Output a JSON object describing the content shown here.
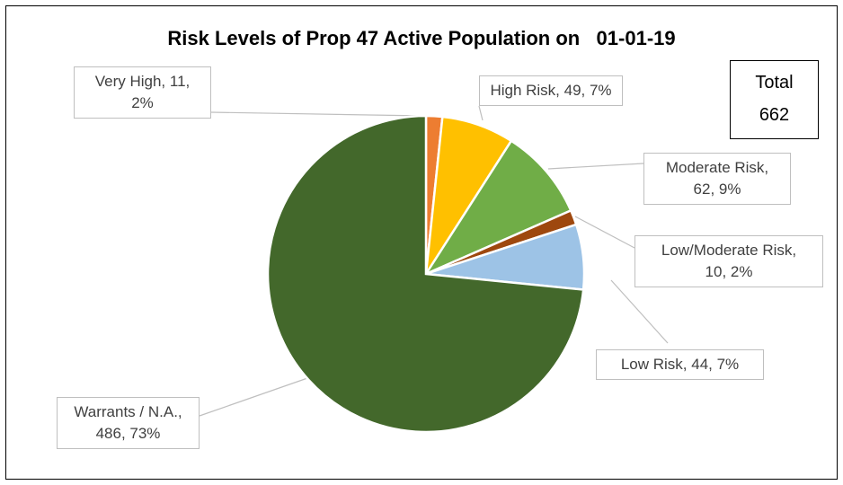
{
  "chart_data": {
    "type": "pie",
    "title": "Risk Levels of Prop 47 Active Population on   01-01-19",
    "values": [
      11,
      49,
      62,
      10,
      44,
      486
    ],
    "value_labels": [
      "Very High, 11,\n2%",
      "High Risk, 49, 7%",
      "Moderate Risk,\n62, 9%",
      "Low/Moderate Risk,\n10, 2%",
      "Low Risk, 44, 7%",
      "Warrants / N.A.,\n486, 73%"
    ],
    "colors": [
      "#ed7d31",
      "#ffc000",
      "#70ad47",
      "#9e480e",
      "#9dc3e6",
      "#43682b"
    ],
    "total_label": "Total",
    "total": 662
  }
}
